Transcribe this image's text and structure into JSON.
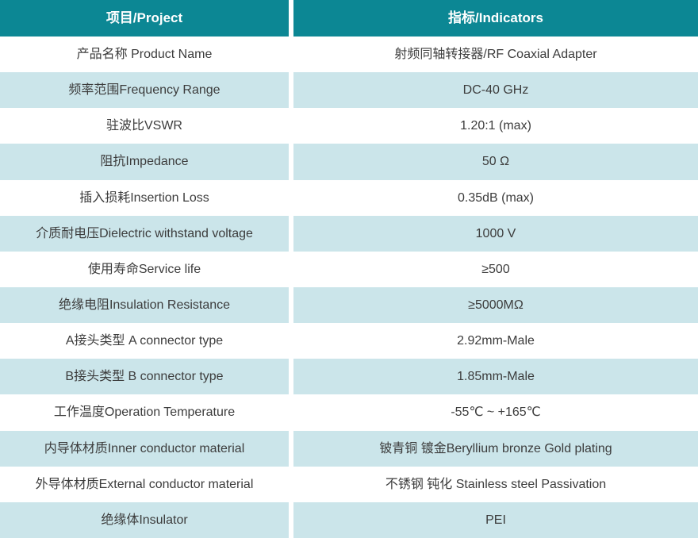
{
  "colors": {
    "header_bg": "#0c8794",
    "header_text": "#ffffff",
    "alt_row_bg": "#cbe5ea",
    "row_bg": "#ffffff",
    "text": "#3c3c3c"
  },
  "table": {
    "header": {
      "project": "项目/Project",
      "indicator": "指标/Indicators"
    },
    "rows": [
      {
        "project": "产品名称 Product Name",
        "indicator": "射频同轴转接器/RF Coaxial Adapter"
      },
      {
        "project": "频率范围Frequency Range",
        "indicator": "DC-40 GHz"
      },
      {
        "project": "驻波比VSWR",
        "indicator": "1.20:1 (max)"
      },
      {
        "project": "阻抗Impedance",
        "indicator": "50 Ω"
      },
      {
        "project": "插入损耗Insertion Loss",
        "indicator": "0.35dB (max)"
      },
      {
        "project": "介质耐电压Dielectric withstand voltage",
        "indicator": "1000 V"
      },
      {
        "project": "使用寿命Service life",
        "indicator": "≥500"
      },
      {
        "project": "绝缘电阻Insulation Resistance",
        "indicator": "≥5000MΩ"
      },
      {
        "project": "A接头类型 A connector type",
        "indicator": "2.92mm-Male"
      },
      {
        "project": "B接头类型 B connector type",
        "indicator": "1.85mm-Male"
      },
      {
        "project": "工作温度Operation Temperature",
        "indicator": "-55℃ ~ +165℃"
      },
      {
        "project": "内导体材质Inner conductor material",
        "indicator": "铍青铜 镀金Beryllium bronze Gold plating"
      },
      {
        "project": "外导体材质External conductor material",
        "indicator": "不锈钢 钝化 Stainless steel Passivation"
      },
      {
        "project": "绝缘体Insulator",
        "indicator": "PEI"
      }
    ]
  }
}
